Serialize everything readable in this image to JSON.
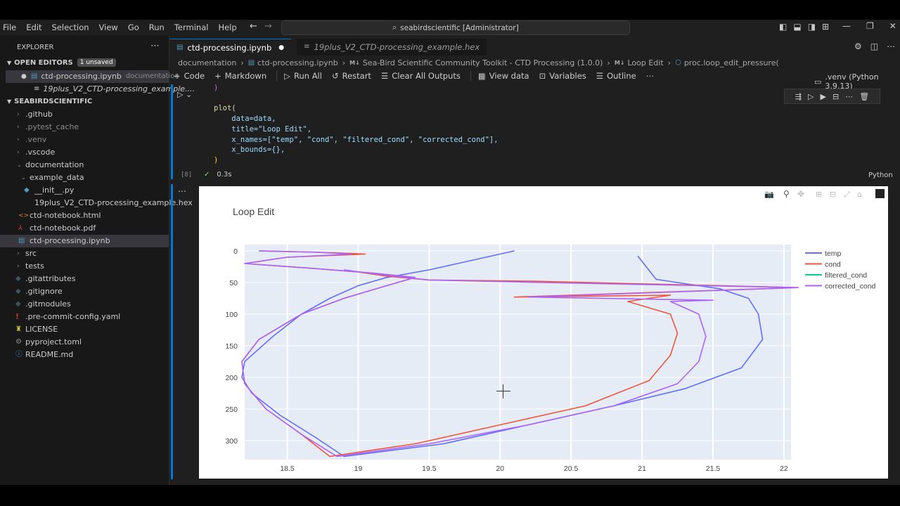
{
  "menu": [
    "File",
    "Edit",
    "Selection",
    "View",
    "Go",
    "Run",
    "Terminal",
    "Help"
  ],
  "command_center": "seabirdscientific [Administrator]",
  "sidebar": {
    "title": "EXPLORER",
    "open_editors_label": "OPEN EDITORS",
    "unsaved_badge": "1 unsaved",
    "open_editors": [
      {
        "name": "ctd-processing.ipynb",
        "desc": "documentation"
      },
      {
        "name": "19plus_V2_CTD-processing_example....",
        "desc": ""
      }
    ],
    "workspace_label": "SEABIRDSCIENTIFIC",
    "tree": [
      {
        "name": ".github",
        "kind": "folder"
      },
      {
        "name": ".pytest_cache",
        "kind": "folder"
      },
      {
        "name": ".venv",
        "kind": "folder"
      },
      {
        "name": ".vscode",
        "kind": "folder"
      },
      {
        "name": "documentation",
        "kind": "folder-open"
      },
      {
        "name": "example_data",
        "kind": "folder-open"
      },
      {
        "name": "__init__.py",
        "kind": "py"
      },
      {
        "name": "19plus_V2_CTD-processing_example.hex",
        "kind": "hex"
      },
      {
        "name": "ctd-notebook.html",
        "kind": "html"
      },
      {
        "name": "ctd-notebook.pdf",
        "kind": "pdf"
      },
      {
        "name": "ctd-processing.ipynb",
        "kind": "nb"
      },
      {
        "name": "src",
        "kind": "folder"
      },
      {
        "name": "tests",
        "kind": "folder"
      },
      {
        "name": ".gitattributes",
        "kind": "git"
      },
      {
        "name": ".gitignore",
        "kind": "git"
      },
      {
        "name": ".gitmodules",
        "kind": "git"
      },
      {
        "name": ".pre-commit-config.yaml",
        "kind": "yaml"
      },
      {
        "name": "LICENSE",
        "kind": "license"
      },
      {
        "name": "pyproject.toml",
        "kind": "toml"
      },
      {
        "name": "README.md",
        "kind": "md"
      }
    ]
  },
  "tabs": [
    {
      "label": "ctd-processing.ipynb",
      "active": true
    },
    {
      "label": "19plus_V2_CTD-processing_example.hex",
      "active": false
    }
  ],
  "breadcrumbs": [
    "documentation",
    "ctd-processing.ipynb",
    "Sea-Bird Scientific Community Toolkit - CTD Processing (1.0.0)",
    "Loop Edit",
    "proc.loop_edit_pressure("
  ],
  "toolbar": {
    "code": "Code",
    "markdown": "Markdown",
    "run_all": "Run All",
    "restart": "Restart",
    "clear": "Clear All Outputs",
    "view_data": "View data",
    "variables": "Variables",
    "outline": "Outline",
    "kernel": ".venv (Python 3.9.13)"
  },
  "cell": {
    "exec_count": "[8]",
    "exec_time": "0.3s",
    "language": "Python",
    "code_lines": [
      ")",
      "plot(",
      "    data=data,",
      "    title=\"Loop Edit\",",
      "    x_names=[\"temp\", \"cond\", \"filtered_cond\", \"corrected_cond\"],",
      "    x_bounds={},",
      ")"
    ]
  },
  "colors": {
    "temp": "#636efa",
    "cond": "#ef553b",
    "filtered_cond": "#00cc96",
    "corrected_cond": "#ab63fa"
  },
  "chart_data": {
    "type": "line",
    "title": "Loop Edit",
    "xlabel": "",
    "ylabel": "",
    "xlim": [
      18.2,
      22.05
    ],
    "ylim": [
      330,
      -10
    ],
    "y_reversed": true,
    "xticks": [
      "18.5",
      "19",
      "19.5",
      "20",
      "20.5",
      "21",
      "21.5",
      "22"
    ],
    "yticks": [
      "0",
      "50",
      "100",
      "150",
      "200",
      "250",
      "300"
    ],
    "legend_position": "top-right",
    "series": [
      {
        "name": "temp",
        "points": [
          [
            20.1,
            0
          ],
          [
            19.9,
            10
          ],
          [
            19.7,
            20
          ],
          [
            19.5,
            30
          ],
          [
            19.2,
            42
          ],
          [
            19.0,
            55
          ],
          [
            18.8,
            75
          ],
          [
            18.6,
            100
          ],
          [
            18.4,
            135
          ],
          [
            18.2,
            175
          ],
          [
            18.18,
            200
          ],
          [
            18.25,
            225
          ],
          [
            18.45,
            260
          ],
          [
            18.7,
            295
          ],
          [
            18.9,
            325
          ],
          [
            19.6,
            305
          ],
          [
            20.2,
            275
          ],
          [
            20.8,
            245
          ],
          [
            21.3,
            218
          ],
          [
            21.7,
            185
          ],
          [
            21.85,
            140
          ],
          [
            21.82,
            100
          ],
          [
            21.75,
            75
          ],
          [
            21.55,
            60
          ],
          [
            21.1,
            45
          ],
          [
            20.97,
            8
          ]
        ]
      },
      {
        "name": "cond",
        "points": [
          [
            18.3,
            0
          ],
          [
            18.7,
            2
          ],
          [
            19.05,
            5
          ],
          [
            18.5,
            10
          ],
          [
            18.2,
            20
          ],
          [
            18.7,
            28
          ],
          [
            19.1,
            35
          ],
          [
            19.4,
            42
          ],
          [
            19.2,
            55
          ],
          [
            18.9,
            75
          ],
          [
            18.6,
            100
          ],
          [
            18.3,
            140
          ],
          [
            18.18,
            175
          ],
          [
            18.2,
            210
          ],
          [
            18.35,
            250
          ],
          [
            18.6,
            290
          ],
          [
            18.8,
            325
          ],
          [
            19.4,
            305
          ],
          [
            20.0,
            275
          ],
          [
            20.6,
            245
          ],
          [
            21.05,
            205
          ],
          [
            21.2,
            165
          ],
          [
            21.25,
            130
          ],
          [
            21.2,
            100
          ],
          [
            20.9,
            80
          ],
          [
            21.2,
            70
          ],
          [
            20.1,
            73
          ],
          [
            22.1,
            58
          ],
          [
            20.25,
            48
          ],
          [
            19.5,
            46
          ],
          [
            19.2,
            40
          ],
          [
            18.9,
            30
          ]
        ]
      },
      {
        "name": "corrected_cond",
        "points": [
          [
            18.3,
            0
          ],
          [
            18.7,
            2
          ],
          [
            18.95,
            5
          ],
          [
            18.5,
            10
          ],
          [
            18.2,
            20
          ],
          [
            18.7,
            28
          ],
          [
            19.1,
            35
          ],
          [
            19.4,
            42
          ],
          [
            19.2,
            55
          ],
          [
            18.9,
            75
          ],
          [
            18.6,
            100
          ],
          [
            18.3,
            140
          ],
          [
            18.18,
            175
          ],
          [
            18.2,
            210
          ],
          [
            18.35,
            250
          ],
          [
            18.6,
            290
          ],
          [
            18.85,
            325
          ],
          [
            19.5,
            305
          ],
          [
            20.2,
            275
          ],
          [
            20.8,
            245
          ],
          [
            21.25,
            210
          ],
          [
            21.4,
            175
          ],
          [
            21.45,
            135
          ],
          [
            21.4,
            100
          ],
          [
            21.2,
            80
          ],
          [
            21.5,
            78
          ],
          [
            20.2,
            73
          ],
          [
            22.1,
            58
          ],
          [
            20.3,
            50
          ],
          [
            19.5,
            46
          ],
          [
            19.25,
            40
          ],
          [
            18.9,
            30
          ]
        ]
      }
    ]
  }
}
